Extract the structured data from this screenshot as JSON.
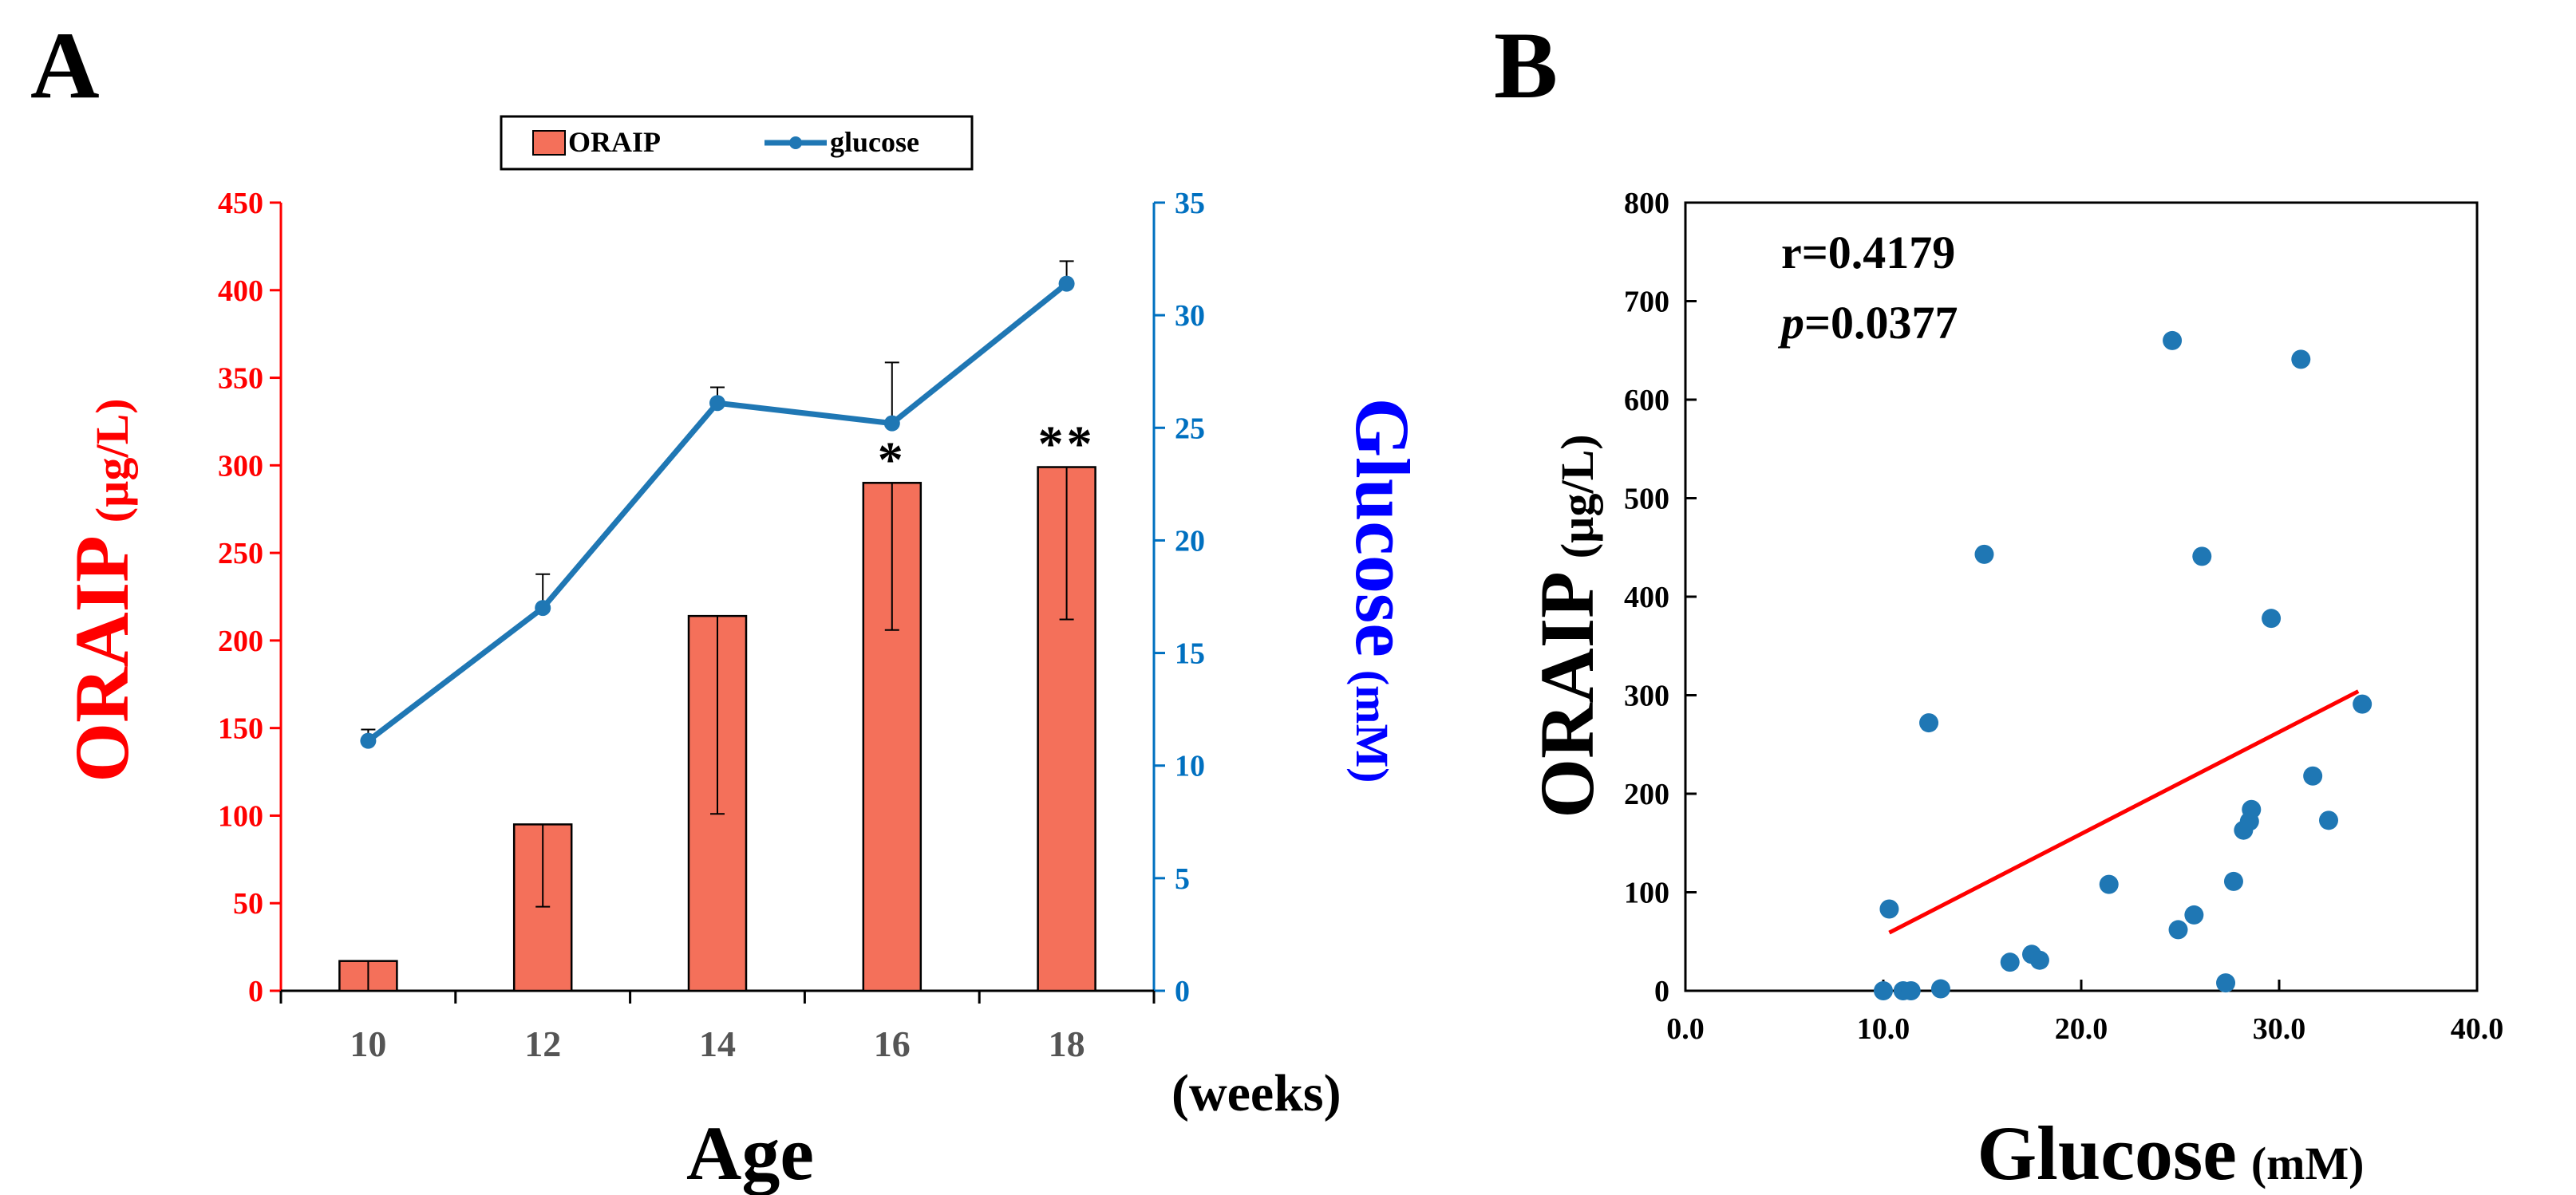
{
  "chart_data": [
    {
      "panel": "A",
      "type": "bar+line",
      "legend": {
        "placement": "top-center",
        "bar_label": "ORAIP",
        "line_label": "glucose"
      },
      "xlabel": "Age",
      "x_unit": "(weeks)",
      "categories": [
        "10",
        "12",
        "14",
        "16",
        "18"
      ],
      "bar_series": {
        "name": "ORAIP",
        "values": [
          17,
          95,
          214,
          290,
          299
        ],
        "error_low": [
          0,
          48,
          101,
          206,
          212
        ],
        "error_high": [
          17,
          95,
          214,
          290,
          299
        ],
        "annotations": [
          "",
          "",
          "",
          "*",
          "**"
        ]
      },
      "line_series": {
        "name": "glucose",
        "values": [
          11.1,
          17.0,
          26.1,
          25.2,
          31.4
        ],
        "error_high": [
          11.6,
          18.5,
          26.8,
          27.9,
          32.4
        ]
      },
      "y_left": {
        "label_main": "ORAIP",
        "label_unit": "(µg/L)",
        "range": [
          0,
          450
        ],
        "ticks": [
          "0",
          "50",
          "100",
          "150",
          "200",
          "250",
          "300",
          "350",
          "400",
          "450"
        ],
        "color": "#ff0000"
      },
      "y_right": {
        "label_main": "Glucose",
        "label_unit": "(mM)",
        "range": [
          0,
          35
        ],
        "ticks": [
          "0",
          "5",
          "10",
          "15",
          "20",
          "25",
          "30",
          "35"
        ],
        "color": "#0070c0"
      },
      "colors": {
        "bar": "#f4705a",
        "line": "#1f77b4",
        "left_axis": "#ff0000",
        "right_axis": "#0070c0"
      }
    },
    {
      "panel": "B",
      "type": "scatter",
      "xlabel_main": "Glucose",
      "xlabel_unit": "(mM)",
      "ylabel_main": "ORAIP",
      "ylabel_unit": "(µg/L)",
      "x_range": [
        0,
        40
      ],
      "y_range": [
        0,
        800
      ],
      "x_ticks": [
        "0.0",
        "10.0",
        "20.0",
        "30.0",
        "40.0"
      ],
      "y_ticks": [
        "0",
        "100",
        "200",
        "300",
        "400",
        "500",
        "600",
        "700",
        "800"
      ],
      "stats": {
        "r_text": "r=0.4179",
        "p_symbol": "p",
        "p_value": "=0.0377"
      },
      "points": [
        {
          "x": 10.0,
          "y": 0
        },
        {
          "x": 10.3,
          "y": 83
        },
        {
          "x": 11.0,
          "y": 0
        },
        {
          "x": 11.4,
          "y": 0
        },
        {
          "x": 12.3,
          "y": 272
        },
        {
          "x": 12.9,
          "y": 2
        },
        {
          "x": 15.1,
          "y": 443
        },
        {
          "x": 16.4,
          "y": 29
        },
        {
          "x": 17.5,
          "y": 37
        },
        {
          "x": 17.9,
          "y": 31
        },
        {
          "x": 21.4,
          "y": 108
        },
        {
          "x": 24.6,
          "y": 660
        },
        {
          "x": 24.9,
          "y": 62
        },
        {
          "x": 25.7,
          "y": 77
        },
        {
          "x": 26.1,
          "y": 441
        },
        {
          "x": 27.3,
          "y": 8
        },
        {
          "x": 27.7,
          "y": 111
        },
        {
          "x": 28.2,
          "y": 163
        },
        {
          "x": 28.5,
          "y": 172
        },
        {
          "x": 28.6,
          "y": 184
        },
        {
          "x": 29.6,
          "y": 378
        },
        {
          "x": 31.1,
          "y": 641
        },
        {
          "x": 31.7,
          "y": 218
        },
        {
          "x": 32.5,
          "y": 173
        },
        {
          "x": 34.2,
          "y": 291
        }
      ],
      "fit_line": {
        "x": [
          10.3,
          34.0
        ],
        "y": [
          59,
          304
        ]
      },
      "colors": {
        "points": "#1f77b4",
        "fit": "#ff0000"
      }
    }
  ],
  "panel_labels": {
    "a": "A",
    "b": "B"
  }
}
